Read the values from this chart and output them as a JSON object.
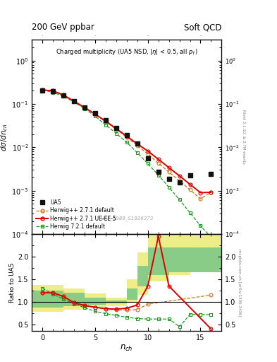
{
  "title_top_left": "200 GeV ppbar",
  "title_top_right": "Soft QCD",
  "plot_title": "Charged multiplicity (UA5 NSD, |\\u03b7| < 0.5, all p_{T})",
  "ylabel_main": "d\\u03c3/dn_{ch}",
  "ylabel_ratio": "Ratio to UA5",
  "xlabel": "n_{ch}",
  "watermark": "UA5_1989_S1926373",
  "right_label_top": "Rivet 3.1.10, \\u2265 2.7M events",
  "right_label_bot": "mcplots.cern.ch [arXiv:1306.3436]",
  "ua5_x": [
    0,
    1,
    2,
    3,
    4,
    5,
    6,
    7,
    8,
    9,
    10,
    11,
    12,
    13,
    14,
    16
  ],
  "ua5_y": [
    0.205,
    0.195,
    0.155,
    0.115,
    0.083,
    0.062,
    0.042,
    0.028,
    0.019,
    0.012,
    0.0056,
    0.0027,
    0.0019,
    0.00155,
    0.0023,
    0.0024
  ],
  "hwpp_default_x": [
    0,
    1,
    2,
    3,
    4,
    5,
    6,
    7,
    8,
    9,
    10,
    11,
    12,
    13,
    14,
    15,
    16
  ],
  "hwpp_default_y": [
    0.21,
    0.2,
    0.16,
    0.115,
    0.083,
    0.058,
    0.039,
    0.026,
    0.017,
    0.011,
    0.007,
    0.0043,
    0.0027,
    0.0017,
    0.00105,
    0.00065,
    0.00092
  ],
  "hwpp_uee5_x": [
    0,
    1,
    2,
    3,
    4,
    5,
    6,
    7,
    8,
    9,
    10,
    11,
    12,
    13,
    14,
    15,
    16
  ],
  "hwpp_uee5_y": [
    0.21,
    0.2,
    0.16,
    0.115,
    0.083,
    0.058,
    0.04,
    0.027,
    0.018,
    0.012,
    0.0082,
    0.0053,
    0.0034,
    0.0022,
    0.0014,
    0.0009,
    0.00092
  ],
  "hw721_x": [
    0,
    1,
    2,
    3,
    4,
    5,
    6,
    7,
    8,
    9,
    10,
    11,
    12,
    13,
    14,
    15,
    16
  ],
  "hw721_y": [
    0.21,
    0.185,
    0.15,
    0.11,
    0.078,
    0.052,
    0.033,
    0.021,
    0.013,
    0.0075,
    0.0042,
    0.0023,
    0.0012,
    0.00062,
    0.00031,
    0.000155,
    8.5e-05
  ],
  "ratio_hwpp_default_x": [
    0,
    1,
    2,
    3,
    4,
    5,
    6,
    7,
    8,
    9,
    10,
    16
  ],
  "ratio_hwpp_default_y": [
    1.2,
    1.2,
    1.12,
    0.98,
    0.92,
    0.88,
    0.84,
    0.82,
    0.82,
    0.83,
    0.95,
    1.15
  ],
  "ratio_hwpp_uee5_x": [
    0,
    1,
    2,
    3,
    4,
    5,
    6,
    7,
    8,
    9,
    10,
    11,
    12,
    16
  ],
  "ratio_hwpp_uee5_y": [
    1.2,
    1.2,
    1.12,
    0.98,
    0.92,
    0.88,
    0.85,
    0.84,
    0.86,
    0.93,
    1.35,
    2.45,
    1.35,
    0.4
  ],
  "ratio_hw721_x": [
    0,
    1,
    2,
    3,
    4,
    5,
    6,
    7,
    8,
    9,
    10,
    11,
    12,
    13,
    14,
    15,
    16
  ],
  "ratio_hw721_y": [
    1.3,
    1.17,
    1.06,
    0.96,
    0.87,
    0.79,
    0.74,
    0.7,
    0.66,
    0.63,
    0.62,
    0.62,
    0.62,
    0.45,
    0.72,
    0.72,
    0.72
  ],
  "band_yellow_x_edges": [
    -1,
    0,
    2,
    4,
    6,
    8,
    9,
    10,
    12,
    14,
    17
  ],
  "band_yellow_lo": [
    0.78,
    0.78,
    0.82,
    0.87,
    0.91,
    0.98,
    1.15,
    1.45,
    1.6,
    1.65,
    1.65
  ],
  "band_yellow_hi": [
    1.38,
    1.38,
    1.3,
    1.18,
    1.1,
    1.5,
    2.1,
    2.5,
    2.5,
    2.5,
    2.5
  ],
  "band_green_x_edges": [
    -1,
    0,
    2,
    4,
    6,
    8,
    9,
    10,
    12,
    14,
    17
  ],
  "band_green_lo": [
    0.88,
    0.88,
    0.9,
    0.93,
    0.97,
    1.05,
    1.35,
    1.6,
    1.65,
    1.65,
    1.65
  ],
  "band_green_hi": [
    1.25,
    1.25,
    1.2,
    1.1,
    1.03,
    1.3,
    1.8,
    2.2,
    2.2,
    2.2,
    2.2
  ],
  "ylim_main": [
    0.0001,
    3.0
  ],
  "ylim_ratio": [
    0.35,
    2.5
  ],
  "xlim": [
    -1.0,
    17.0
  ],
  "xticks": [
    0,
    5,
    10,
    15
  ],
  "yticks_ratio": [
    0.5,
    1.0,
    1.5,
    2.0
  ],
  "color_ua5": "#111111",
  "color_hwpp_default": "#cc7722",
  "color_hwpp_uee5": "#dd0000",
  "color_hw721": "#229922",
  "color_band_yellow": "#eeee88",
  "color_band_green": "#88cc88"
}
